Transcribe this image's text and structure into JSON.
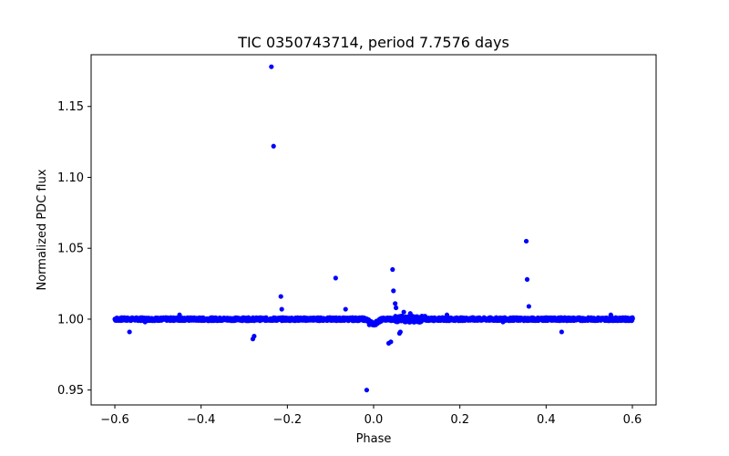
{
  "chart_data": {
    "type": "scatter",
    "title": "TIC 0350743714, period 7.7576 days",
    "xlabel": "Phase",
    "ylabel": "Normalized PDC flux",
    "xlim": [
      -0.655,
      0.655
    ],
    "ylim": [
      0.9395,
      1.1865
    ],
    "xticks": [
      -0.6,
      -0.4,
      -0.2,
      0.0,
      0.2,
      0.4,
      0.6
    ],
    "xtick_labels": [
      "−0.6",
      "−0.4",
      "−0.2",
      "0.0",
      "0.2",
      "0.4",
      "0.6"
    ],
    "yticks": [
      0.95,
      1.0,
      1.05,
      1.1,
      1.15
    ],
    "ytick_labels": [
      "0.95",
      "1.00",
      "1.05",
      "1.10",
      "1.15"
    ],
    "marker_color": "#0000ff",
    "baseline_flux": 1.0,
    "series": [
      {
        "name": "flux",
        "outliers": [
          {
            "x": -0.237,
            "y": 1.178
          },
          {
            "x": -0.232,
            "y": 1.122
          },
          {
            "x": -0.215,
            "y": 1.016
          },
          {
            "x": -0.213,
            "y": 1.007
          },
          {
            "x": -0.28,
            "y": 0.986
          },
          {
            "x": -0.277,
            "y": 0.988
          },
          {
            "x": -0.566,
            "y": 0.991
          },
          {
            "x": -0.088,
            "y": 1.029
          },
          {
            "x": -0.065,
            "y": 1.007
          },
          {
            "x": -0.016,
            "y": 0.95
          },
          {
            "x": 0.035,
            "y": 0.983
          },
          {
            "x": 0.04,
            "y": 0.984
          },
          {
            "x": 0.044,
            "y": 1.035
          },
          {
            "x": 0.046,
            "y": 1.02
          },
          {
            "x": 0.05,
            "y": 1.011
          },
          {
            "x": 0.052,
            "y": 1.008
          },
          {
            "x": 0.06,
            "y": 0.99
          },
          {
            "x": 0.062,
            "y": 0.991
          },
          {
            "x": 0.354,
            "y": 1.055
          },
          {
            "x": 0.356,
            "y": 1.028
          },
          {
            "x": 0.36,
            "y": 1.009
          },
          {
            "x": 0.436,
            "y": 0.991
          },
          {
            "x": 0.07,
            "y": 1.005
          },
          {
            "x": 0.085,
            "y": 1.004
          },
          {
            "x": -0.45,
            "y": 1.003
          },
          {
            "x": 0.55,
            "y": 1.003
          },
          {
            "x": 0.17,
            "y": 1.003
          },
          {
            "x": -0.53,
            "y": 0.998
          },
          {
            "x": 0.3,
            "y": 0.998
          },
          {
            "x": -0.01,
            "y": 0.996
          },
          {
            "x": 0.005,
            "y": 0.996
          }
        ]
      }
    ]
  }
}
